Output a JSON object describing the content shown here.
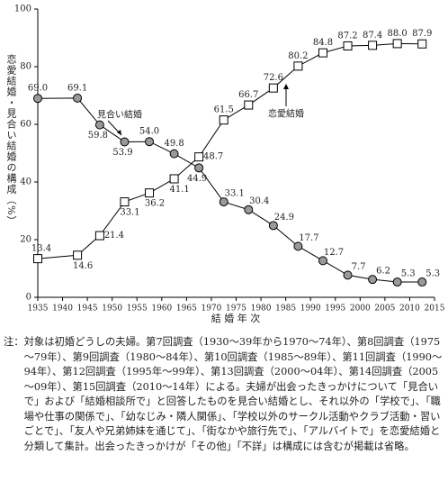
{
  "chart_data": {
    "type": "line",
    "x": [
      1935,
      1943,
      1947.5,
      1952.5,
      1957.5,
      1962.5,
      1967.5,
      1972.5,
      1977.5,
      1982.5,
      1987.5,
      1992.5,
      1997.5,
      2002.5,
      2007.5,
      2012.5
    ],
    "series": [
      {
        "name": "見合い結婚",
        "color": "#999999",
        "marker": "circle",
        "values": [
          69.0,
          69.1,
          59.8,
          53.9,
          54.0,
          49.8,
          44.9,
          33.1,
          30.4,
          24.9,
          17.7,
          12.7,
          7.7,
          6.2,
          5.3,
          5.3
        ],
        "value_labels": [
          "69.0",
          "69.1",
          "59.8",
          "53.9",
          "54.0",
          "49.8",
          "44.9",
          "33.1",
          "30.4",
          "24.9",
          "17.7",
          "12.7",
          "7.7",
          "6.2",
          "5.3",
          "5.3"
        ]
      },
      {
        "name": "恋愛結婚",
        "color": "#ffffff",
        "marker": "square",
        "values": [
          13.4,
          14.6,
          21.4,
          33.1,
          36.2,
          41.1,
          48.7,
          61.5,
          66.7,
          72.6,
          80.2,
          84.8,
          87.2,
          87.4,
          88.0,
          87.9
        ],
        "value_labels": [
          "13.4",
          "14.6",
          "21.4",
          "33.1",
          "36.2",
          "41.1",
          "48.7",
          "61.5",
          "66.7",
          "72.6",
          "80.2",
          "84.8",
          "87.2",
          "87.4",
          "88.0",
          "87.9"
        ]
      }
    ],
    "xlim": [
      1935,
      2015
    ],
    "xticks": [
      1935,
      1940,
      1945,
      1950,
      1955,
      1960,
      1965,
      1970,
      1975,
      1980,
      1985,
      1990,
      1995,
      2000,
      2005,
      2010,
      2015
    ],
    "ylim": [
      0,
      100
    ],
    "yticks": [
      0,
      20,
      40,
      60,
      80,
      100
    ],
    "xlabel": "結 婚 年 次",
    "ylabel": "恋愛結婚・見合い結婚の構成（%）",
    "note_label": "注：",
    "note": "対象は初婚どうしの夫婦。第7回調査（1930～39年から1970～74年）、第8回調査（1975～79年）、第9回調査（1980～84年）、第10回調査（1985～89年）、第11回調査（1990～94年）、第12回調査（1995年～99年）、第13回調査（2000～04年）、第14回調査（2005～09年）、第15回調査（2010～14年）による。夫婦が出会ったきっかけについて「見合いで」および「結婚相談所で」と回答したものを見合い結婚とし、それ以外の「学校で」、「職場や仕事の関係で」、「幼なじみ・隣人関係」、「学校以外のサークル活動やクラブ活動・習いごとで」、「友人や兄弟姉妹を通じて」、「街なかや旅行先で」、「アルバイトで」を恋愛結婚と分類して集計。出会ったきっかけが「その他」「不詳」は構成には含むが掲載は省略。"
  }
}
